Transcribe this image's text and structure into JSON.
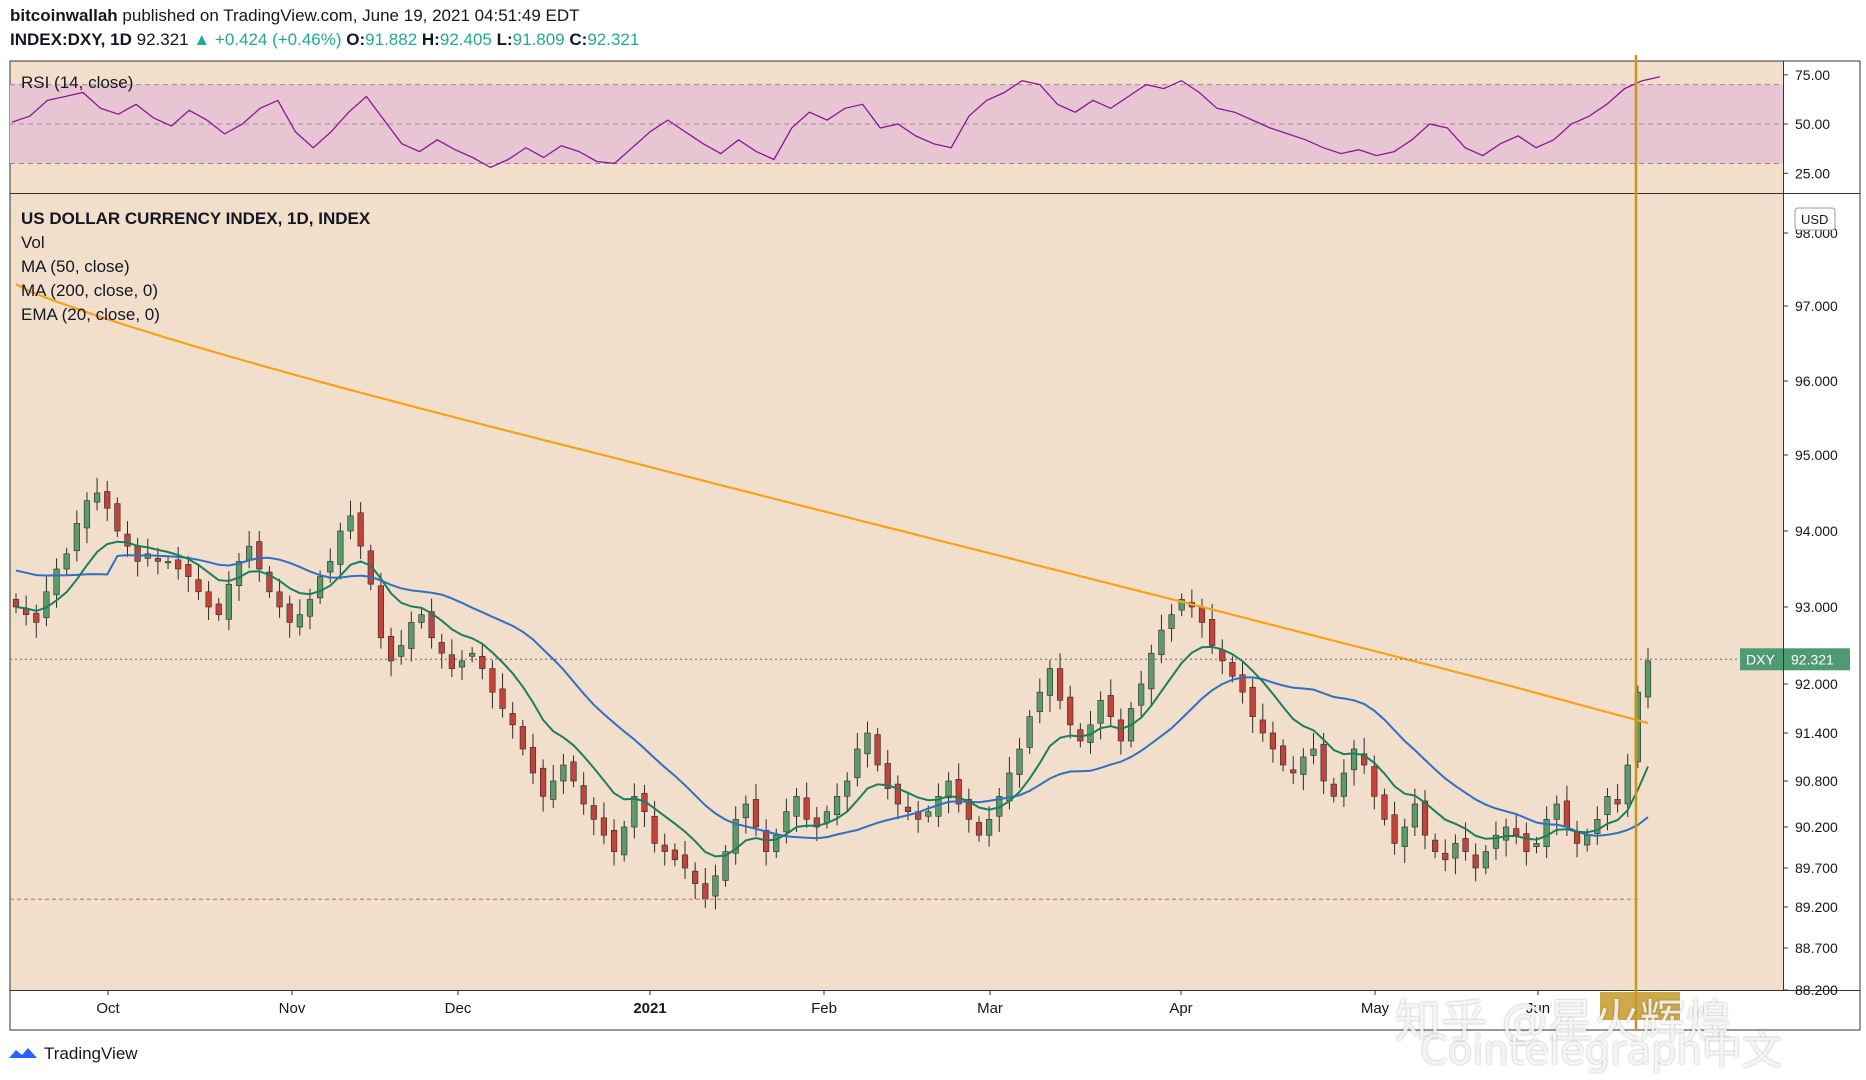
{
  "header": {
    "author": "bitcoinwallah",
    "published": "published on TradingView.com, June 19, 2021 04:51:49 EDT",
    "symbol": "INDEX:DXY, 1D",
    "last": "92.321",
    "change": "▲ +0.424 (+0.46%)",
    "o_label": "O:",
    "o": "91.882",
    "h_label": "H:",
    "h": "92.405",
    "l_label": "L:",
    "l": "91.809",
    "c_label": "C:",
    "c": "92.321"
  },
  "rsi_legend": "RSI (14, close)",
  "main_legend": {
    "title": "US DOLLAR CURRENCY INDEX, 1D, INDEX",
    "vol": "Vol",
    "ma50": "MA (50, close)",
    "ma200": "MA (200, close, 0)",
    "ema20": "EMA (20, close, 0)"
  },
  "currency": "USD",
  "price_tag": {
    "symbol": "DXY",
    "value": "92.321"
  },
  "logo_text": "TradingView",
  "watermark": {
    "line1": "知乎 @星火辉煌",
    "line2": "Cointelegraph中文"
  },
  "colors": {
    "bg": "#f2dfcb",
    "up": "#5b9a6b",
    "down": "#c1443a",
    "ma200": "#f7a21b",
    "ma50": "#2f6fc4",
    "ema20": "#1a7f5f",
    "rsi": "#8e1599",
    "rsi_band": "#e8c5d2",
    "vline": "#c8961b"
  },
  "chart_data": [
    {
      "type": "line",
      "title": "RSI (14, close)",
      "y_ticks": [
        "75.00",
        "50.00",
        "25.00"
      ],
      "ylim": [
        15,
        82
      ],
      "band": [
        30,
        70
      ],
      "series": [
        {
          "name": "RSI",
          "values": [
            51,
            54,
            62,
            64,
            66,
            58,
            55,
            60,
            53,
            49,
            57,
            52,
            45,
            50,
            58,
            62,
            46,
            38,
            46,
            56,
            64,
            52,
            40,
            36,
            42,
            37,
            33,
            28,
            32,
            38,
            33,
            39,
            36,
            31,
            30,
            38,
            46,
            52,
            46,
            40,
            35,
            42,
            36,
            32,
            48,
            56,
            52,
            58,
            60,
            48,
            50,
            44,
            40,
            38,
            54,
            62,
            66,
            72,
            70,
            60,
            56,
            62,
            58,
            64,
            70,
            68,
            72,
            66,
            58,
            56,
            52,
            48,
            45,
            42,
            38,
            35,
            37,
            34,
            36,
            42,
            50,
            48,
            38,
            34,
            40,
            44,
            38,
            42,
            50,
            54,
            60,
            68,
            72,
            74
          ]
        }
      ]
    },
    {
      "type": "candlestick",
      "title": "US DOLLAR CURRENCY INDEX, 1D, INDEX",
      "x_ticks": [
        "Oct",
        "Nov",
        "Dec",
        "2021",
        "Feb",
        "Mar",
        "Apr",
        "May",
        "Jun"
      ],
      "y_ticks": [
        "98.000",
        "97.000",
        "96.000",
        "95.000",
        "94.000",
        "93.000",
        "92.000",
        "91.400",
        "90.800",
        "90.200",
        "89.700",
        "89.200",
        "88.700",
        "88.200"
      ],
      "ylim": [
        88.2,
        98.3
      ],
      "last_price": 92.321,
      "closes": [
        93.0,
        92.9,
        92.8,
        93.2,
        93.5,
        93.7,
        94.1,
        94.4,
        94.5,
        94.3,
        94.0,
        93.8,
        93.6,
        93.7,
        93.6,
        93.6,
        93.5,
        93.4,
        93.2,
        93.0,
        92.9,
        93.3,
        93.6,
        93.8,
        93.5,
        93.2,
        93.0,
        92.8,
        92.9,
        93.1,
        93.4,
        93.6,
        94.0,
        94.2,
        93.8,
        93.3,
        92.6,
        92.3,
        92.5,
        92.8,
        92.9,
        92.6,
        92.4,
        92.2,
        92.3,
        92.4,
        92.2,
        91.9,
        91.7,
        91.5,
        91.2,
        90.9,
        90.6,
        90.8,
        91.0,
        90.8,
        90.5,
        90.3,
        90.1,
        89.9,
        90.2,
        90.6,
        90.4,
        90.0,
        89.9,
        89.8,
        89.7,
        89.5,
        89.3,
        89.6,
        89.9,
        90.3,
        90.5,
        90.2,
        89.9,
        90.1,
        90.4,
        90.6,
        90.3,
        90.2,
        90.4,
        90.6,
        90.8,
        91.2,
        91.4,
        91.0,
        90.7,
        90.5,
        90.4,
        90.3,
        90.4,
        90.6,
        90.8,
        90.5,
        90.3,
        90.1,
        90.3,
        90.6,
        90.9,
        91.2,
        91.6,
        91.9,
        92.2,
        91.8,
        91.5,
        91.3,
        91.5,
        91.8,
        91.6,
        91.3,
        91.7,
        92.0,
        92.4,
        92.7,
        92.9,
        93.1,
        93.0,
        92.8,
        92.5,
        92.3,
        92.1,
        91.9,
        91.6,
        91.4,
        91.2,
        91.0,
        90.9,
        91.1,
        91.2,
        90.8,
        90.6,
        90.9,
        91.2,
        91.0,
        90.6,
        90.3,
        90.0,
        90.2,
        90.5,
        90.1,
        89.9,
        89.8,
        90.0,
        89.9,
        89.7,
        89.9,
        90.1,
        90.2,
        90.1,
        89.9,
        90.0,
        90.3,
        90.5,
        90.2,
        90.0,
        90.1,
        90.3,
        90.6,
        90.5,
        91.0,
        91.9,
        92.3
      ]
    }
  ]
}
